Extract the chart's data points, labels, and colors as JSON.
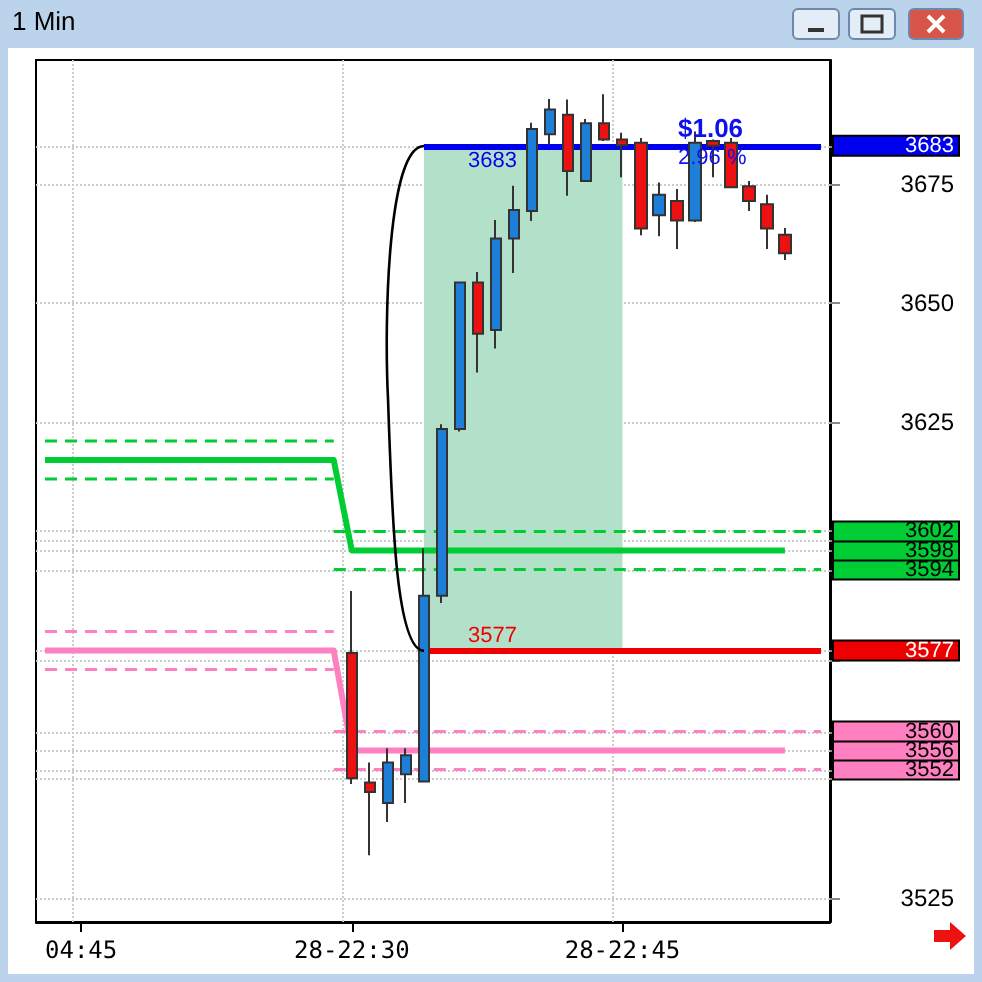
{
  "chart_data": {
    "type": "candlestick",
    "title": "1 Min",
    "categories": [
      null,
      null,
      "04:45",
      null,
      null,
      null,
      null,
      null,
      null,
      null,
      null,
      null,
      null,
      null,
      null,
      null,
      null,
      "28-22:30",
      null,
      null,
      null,
      null,
      null,
      null,
      null,
      null,
      null,
      null,
      null,
      null,
      null,
      null,
      "28-22:45",
      null,
      null,
      null,
      null,
      null,
      null,
      null,
      null,
      null,
      null,
      null
    ],
    "ylim": [
      3520,
      3701
    ],
    "yticks": [
      3525,
      {
        "value": 3550,
        "label": null
      },
      3552,
      3556,
      3560,
      {
        "value": 3575,
        "label": null
      },
      3577,
      3594,
      3598,
      {
        "value": 3600,
        "label": null
      },
      3602,
      3625,
      3650,
      3675,
      3683
    ],
    "grid": true,
    "marker": "none",
    "ohlc": [
      null,
      null,
      null,
      null,
      null,
      null,
      null,
      null,
      null,
      null,
      null,
      null,
      null,
      null,
      null,
      null,
      null,
      [
        3576.5,
        3589.5,
        3549,
        3550.2
      ],
      [
        3549.3,
        3553.5,
        3534,
        3547.3
      ],
      [
        3545,
        3556.5,
        3541,
        3553.5
      ],
      [
        3551,
        3556.5,
        3545,
        3555
      ],
      [
        3549.5,
        3598.5,
        3549.5,
        3588.5
      ],
      [
        3588.5,
        3624.5,
        3587,
        3623.5
      ],
      [
        3623.5,
        3654.5,
        3623,
        3654.3
      ],
      [
        3654.3,
        3656.5,
        3635.4,
        3643.5
      ],
      [
        3644.3,
        3667.4,
        3640.4,
        3663.5
      ],
      [
        3663.5,
        3674.6,
        3656.3,
        3669.5
      ],
      [
        3669.3,
        3687.8,
        3667.2,
        3686.5
      ],
      [
        3685.4,
        3692.8,
        3683.2,
        3690.6
      ],
      [
        3689.5,
        3692.7,
        3672.5,
        3677.7
      ],
      [
        3675.6,
        3688.6,
        3675.6,
        3687.7
      ],
      [
        3687.7,
        3693.8,
        3684,
        3684.3
      ],
      [
        3684.3,
        3685.7,
        3676.4,
        3683.1
      ],
      [
        3683.6,
        3684.6,
        3664.2,
        3665.6
      ],
      [
        3668.4,
        3675.3,
        3664,
        3672.7
      ],
      [
        3671.4,
        3673.9,
        3661.3,
        3667.3
      ],
      [
        3667.3,
        3686,
        3667,
        3683.6
      ],
      [
        3684,
        3684.3,
        3676.4,
        3683
      ],
      [
        3683.6,
        3684.6,
        3674.3,
        3674.3
      ],
      [
        3674.5,
        3675.6,
        3669.3,
        3671.4
      ],
      [
        3670.7,
        3672.7,
        3661.3,
        3665.6
      ],
      [
        3664.3,
        3665.7,
        3659,
        3660.4
      ],
      null,
      null
    ],
    "colors": [
      null,
      null,
      null,
      null,
      null,
      null,
      null,
      null,
      null,
      null,
      null,
      null,
      null,
      null,
      null,
      null,
      null,
      "#ee1111",
      "#ee1111",
      "#1e7fd8",
      "#1e7fd8",
      "#1e7fd8",
      "#1e7fd8",
      "#1e7fd8",
      "#ee1111",
      "#1e7fd8",
      "#1e7fd8",
      "#1e7fd8",
      "#1e7fd8",
      "#ee1111",
      "#1e7fd8",
      "#ee1111",
      "#ee1111",
      "#ee1111",
      "#1e7fd8",
      "#ee1111",
      "#1e7fd8",
      "#ee1111",
      "#ee1111",
      "#ee1111",
      "#ee1111",
      "#ee1111",
      null,
      null
    ],
    "series": [
      {
        "type": "line",
        "color": "#00cc33",
        "line_style": "solid",
        "values": [
          3617,
          3617,
          3617,
          3617,
          3617,
          3617,
          3617,
          3617,
          3617,
          3617,
          3617,
          3617,
          3617,
          3617,
          3617,
          3617,
          3617,
          3598,
          3598,
          3598,
          3598,
          3598,
          3598,
          3598,
          3598,
          3598,
          3598,
          3598,
          3598,
          3598,
          3598,
          3598,
          3598,
          3598,
          3598,
          3598,
          3598,
          3598,
          3598,
          3598,
          3598,
          3598,
          null,
          null
        ]
      },
      {
        "type": "line",
        "color": "#00cc33",
        "line_style": "dashed",
        "values": [
          3621,
          3621,
          3621,
          3621,
          3621,
          3621,
          3621,
          3621,
          3621,
          3621,
          3621,
          3621,
          3621,
          3621,
          3621,
          3621,
          3621,
          null,
          null,
          null,
          null,
          null,
          null,
          null,
          null,
          null,
          null,
          null,
          null,
          null,
          null,
          null,
          null,
          null,
          null,
          null,
          null,
          null,
          null,
          null,
          null,
          null,
          null,
          null
        ]
      },
      {
        "type": "line",
        "color": "#00cc33",
        "line_style": "dashed",
        "values": [
          null,
          null,
          null,
          null,
          null,
          null,
          null,
          null,
          null,
          null,
          null,
          null,
          null,
          null,
          null,
          null,
          3602,
          3602,
          3602,
          3602,
          3602,
          3602,
          3602,
          3602,
          3602,
          3602,
          3602,
          3602,
          3602,
          3602,
          3602,
          3602,
          3602,
          3602,
          3602,
          3602,
          3602,
          3602,
          3602,
          3602,
          3602,
          3602,
          3602,
          3602
        ]
      },
      {
        "type": "line",
        "color": "#00cc33",
        "line_style": "dashed",
        "values": [
          3613,
          3613,
          3613,
          3613,
          3613,
          3613,
          3613,
          3613,
          3613,
          3613,
          3613,
          3613,
          3613,
          3613,
          3613,
          3613,
          3613,
          null,
          null,
          null,
          null,
          null,
          null,
          null,
          null,
          null,
          null,
          null,
          null,
          null,
          null,
          null,
          null,
          null,
          null,
          null,
          null,
          null,
          null,
          null,
          null,
          null,
          null,
          null
        ]
      },
      {
        "type": "line",
        "color": "#00cc33",
        "line_style": "dashed",
        "values": [
          null,
          null,
          null,
          null,
          null,
          null,
          null,
          null,
          null,
          null,
          null,
          null,
          null,
          null,
          null,
          null,
          3594,
          3594,
          3594,
          3594,
          3594,
          3594,
          3594,
          3594,
          3594,
          3594,
          3594,
          3594,
          3594,
          3594,
          3594,
          3594,
          3594,
          3594,
          3594,
          3594,
          3594,
          3594,
          3594,
          3594,
          3594,
          3594,
          3594,
          3594
        ]
      },
      {
        "type": "line",
        "color": "#ff80c0",
        "line_style": "solid",
        "values": [
          3577,
          3577,
          3577,
          3577,
          3577,
          3577,
          3577,
          3577,
          3577,
          3577,
          3577,
          3577,
          3577,
          3577,
          3577,
          3577,
          3577,
          3556,
          3556,
          3556,
          3556,
          3556,
          3556,
          3556,
          3556,
          3556,
          3556,
          3556,
          3556,
          3556,
          3556,
          3556,
          3556,
          3556,
          3556,
          3556,
          3556,
          3556,
          3556,
          3556,
          3556,
          3556,
          null,
          null
        ]
      },
      {
        "type": "line",
        "color": "#ff80c0",
        "line_style": "dashed",
        "values": [
          3581,
          3581,
          3581,
          3581,
          3581,
          3581,
          3581,
          3581,
          3581,
          3581,
          3581,
          3581,
          3581,
          3581,
          3581,
          3581,
          3581,
          null,
          null,
          null,
          null,
          null,
          null,
          null,
          null,
          null,
          null,
          null,
          null,
          null,
          null,
          null,
          null,
          null,
          null,
          null,
          null,
          null,
          null,
          null,
          null,
          null,
          null,
          null
        ]
      },
      {
        "type": "line",
        "color": "#ff80c0",
        "line_style": "dashed",
        "values": [
          null,
          null,
          null,
          null,
          null,
          null,
          null,
          null,
          null,
          null,
          null,
          null,
          null,
          null,
          null,
          null,
          3560,
          3560,
          3560,
          3560,
          3560,
          3560,
          3560,
          3560,
          3560,
          3560,
          3560,
          3560,
          3560,
          3560,
          3560,
          3560,
          3560,
          3560,
          3560,
          3560,
          3560,
          3560,
          3560,
          3560,
          3560,
          3560,
          3560,
          3560
        ]
      },
      {
        "type": "line",
        "color": "#ff80c0",
        "line_style": "dashed",
        "values": [
          3573,
          3573,
          3573,
          3573,
          3573,
          3573,
          3573,
          3573,
          3573,
          3573,
          3573,
          3573,
          3573,
          3573,
          3573,
          3573,
          3573,
          null,
          null,
          null,
          null,
          null,
          null,
          null,
          null,
          null,
          null,
          null,
          null,
          null,
          null,
          null,
          null,
          null,
          null,
          null,
          null,
          null,
          null,
          null,
          null,
          null,
          null,
          null
        ]
      },
      {
        "type": "line",
        "color": "#ff80c0",
        "line_style": "dashed",
        "values": [
          null,
          null,
          null,
          null,
          null,
          null,
          null,
          null,
          null,
          null,
          null,
          null,
          null,
          null,
          null,
          null,
          3552,
          3552,
          3552,
          3552,
          3552,
          3552,
          3552,
          3552,
          3552,
          3552,
          3552,
          3552,
          3552,
          3552,
          3552,
          3552,
          3552,
          3552,
          3552,
          3552,
          3552,
          3552,
          3552,
          3552,
          3552,
          3552,
          3552,
          3552
        ]
      }
    ],
    "ref_lines": [
      {
        "axis": "y",
        "value": 3683,
        "label": "3683",
        "color": "#0000ee"
      },
      {
        "axis": "y",
        "value": 3577,
        "label": "3577",
        "color": "#ee0000"
      }
    ],
    "bands": [
      {
        "axis": "y",
        "from": 3577,
        "to": 3683,
        "color": "#b2e0c9"
      }
    ],
    "annotations": [
      "$1.06",
      "2.96 %"
    ]
  }
}
